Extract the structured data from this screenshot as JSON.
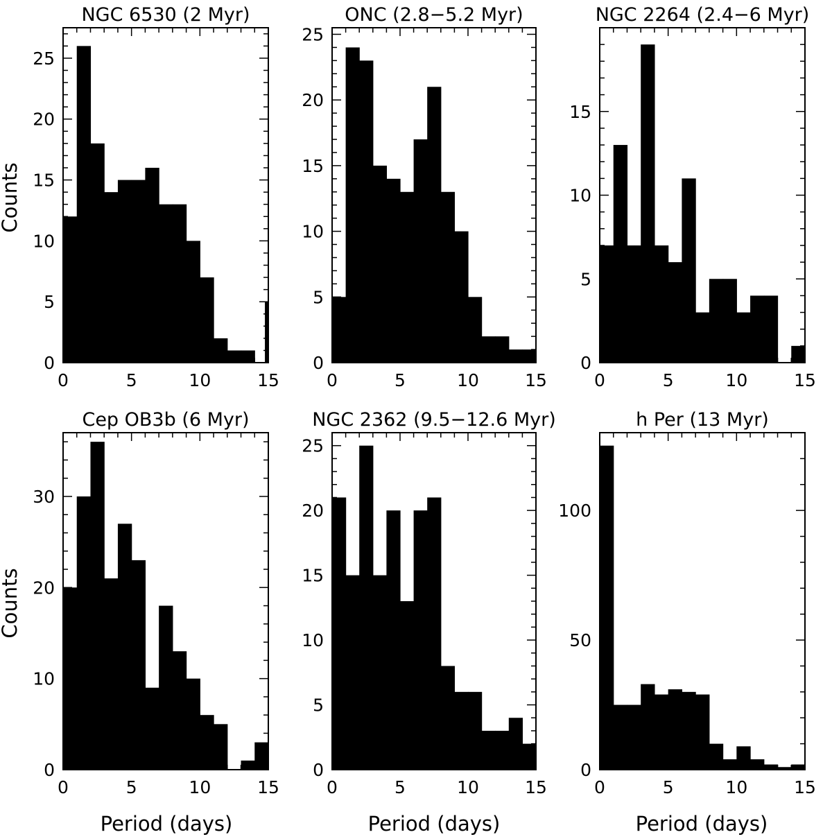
{
  "figure": {
    "ylabel": "Counts",
    "xlabel": "Period  (days)"
  },
  "chart_data": [
    {
      "type": "bar",
      "title": "NGC 6530  (2 Myr)",
      "xlabel": "",
      "ylabel": "Counts",
      "xlim": [
        0,
        15
      ],
      "ylim": [
        0,
        27.5
      ],
      "x_ticks": [
        0,
        5,
        10,
        15
      ],
      "y_ticks": [
        0,
        5,
        10,
        15,
        20,
        25
      ],
      "bin_edges": [
        0,
        1,
        2,
        3,
        3.25,
        4,
        5,
        6,
        7,
        8,
        9,
        10,
        11,
        12,
        13,
        14,
        14.75,
        15
      ],
      "values": [
        12,
        26,
        18,
        14,
        14,
        15,
        15,
        16,
        13,
        13,
        10,
        7,
        2,
        1,
        1,
        0,
        5
      ]
    },
    {
      "type": "bar",
      "title": "ONC  (2.8−5.2 Myr)",
      "xlabel": "",
      "ylabel": "",
      "xlim": [
        0,
        15
      ],
      "ylim": [
        0,
        25.5
      ],
      "x_ticks": [
        0,
        5,
        10,
        15
      ],
      "y_ticks": [
        0,
        5,
        10,
        15,
        20,
        25
      ],
      "bin_edges": [
        0,
        1,
        2,
        3,
        4,
        5,
        6,
        7,
        8,
        9,
        10,
        11,
        12,
        13,
        14,
        15
      ],
      "values": [
        5,
        24,
        23,
        15,
        14,
        13,
        17,
        21,
        13,
        10,
        5,
        2,
        2,
        1,
        1
      ]
    },
    {
      "type": "bar",
      "title": "NGC 2264  (2.4−6 Myr)",
      "xlabel": "",
      "ylabel": "",
      "xlim": [
        0,
        15
      ],
      "ylim": [
        0,
        20
      ],
      "x_ticks": [
        0,
        5,
        10,
        15
      ],
      "y_ticks": [
        0,
        5,
        10,
        15
      ],
      "bin_edges": [
        0,
        1,
        2,
        2.5,
        3,
        4,
        5,
        6,
        7,
        8,
        9,
        10,
        11,
        12,
        13,
        14,
        15
      ],
      "values": [
        7,
        13,
        7,
        7,
        19,
        7,
        6,
        11,
        3,
        5,
        5,
        3,
        4,
        4,
        0,
        1
      ]
    },
    {
      "type": "bar",
      "title": "Cep OB3b  (6 Myr)",
      "xlabel": "Period  (days)",
      "ylabel": "Counts",
      "xlim": [
        0,
        15
      ],
      "ylim": [
        0,
        37
      ],
      "x_ticks": [
        0,
        5,
        10,
        15
      ],
      "y_ticks": [
        0,
        10,
        20,
        30
      ],
      "bin_edges": [
        0,
        1,
        2,
        3,
        4,
        5,
        6,
        7,
        8,
        9,
        10,
        11,
        12,
        13,
        14,
        15
      ],
      "values": [
        20,
        30,
        36,
        21,
        27,
        23,
        9,
        18,
        13,
        10,
        6,
        5,
        0,
        1,
        3
      ]
    },
    {
      "type": "bar",
      "title": "NGC 2362  (9.5−12.6 Myr)",
      "xlabel": "Period  (days)",
      "ylabel": "",
      "xlim": [
        0,
        15
      ],
      "ylim": [
        0,
        26
      ],
      "x_ticks": [
        0,
        5,
        10,
        15
      ],
      "y_ticks": [
        0,
        5,
        10,
        15,
        20,
        25
      ],
      "bin_edges": [
        0,
        1,
        2,
        3,
        4,
        5,
        6,
        7,
        8,
        9,
        10,
        11,
        12,
        13,
        14,
        15
      ],
      "values": [
        21,
        15,
        25,
        15,
        20,
        13,
        20,
        21,
        8,
        6,
        6,
        3,
        3,
        4,
        2
      ]
    },
    {
      "type": "bar",
      "title": "h Per  (13 Myr)",
      "xlabel": "Period  (days)",
      "ylabel": "",
      "xlim": [
        0,
        15
      ],
      "ylim": [
        0,
        130
      ],
      "x_ticks": [
        0,
        5,
        10,
        15
      ],
      "y_ticks": [
        0,
        50,
        100
      ],
      "bin_edges": [
        0,
        1,
        2,
        3,
        4,
        5,
        6,
        7,
        8,
        9,
        10,
        11,
        12,
        13,
        14,
        15
      ],
      "values": [
        125,
        25,
        25,
        33,
        29,
        31,
        30,
        29,
        10,
        4,
        9,
        4,
        2,
        1,
        2
      ]
    }
  ]
}
